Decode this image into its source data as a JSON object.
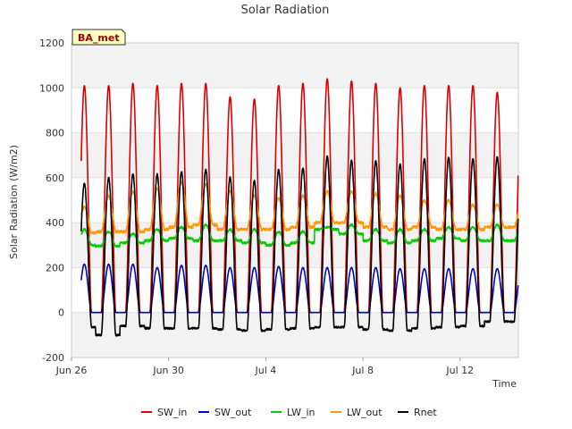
{
  "chart_data": {
    "type": "line",
    "title": "Solar Radiation",
    "xlabel": "Time",
    "ylabel": "Solar Radiation (W/m2)",
    "badge": "BA_met",
    "ylim": [
      -200,
      1200
    ],
    "xlim": [
      0,
      18.4
    ],
    "start_date": "2024-06-26",
    "y_ticks": [
      -200,
      0,
      200,
      400,
      600,
      800,
      1000,
      1200
    ],
    "x_ticks": [
      {
        "day": 0,
        "label": "Jun 26"
      },
      {
        "day": 4,
        "label": "Jun 30"
      },
      {
        "day": 8,
        "label": "Jul 4"
      },
      {
        "day": 12,
        "label": "Jul 8"
      },
      {
        "day": 16,
        "label": "Jul 12"
      }
    ],
    "grid": true,
    "legend_position": "bottom",
    "days": [
      "Jun 26",
      "Jun 27",
      "Jun 28",
      "Jun 29",
      "Jun 30",
      "Jul 1",
      "Jul 2",
      "Jul 3",
      "Jul 4",
      "Jul 5",
      "Jul 6",
      "Jul 7",
      "Jul 8",
      "Jul 9",
      "Jul 10",
      "Jul 11",
      "Jul 12",
      "Jul 13"
    ],
    "series": [
      {
        "name": "SW_in",
        "color": "#dd0000",
        "daily_peak": [
          1010,
          1010,
          1020,
          1010,
          1020,
          1020,
          960,
          950,
          1010,
          1020,
          1040,
          1030,
          1020,
          1000,
          1010,
          1010,
          1010,
          980
        ],
        "night": [
          0,
          0,
          0,
          0,
          0,
          0,
          0,
          0,
          0,
          0,
          0,
          0,
          0,
          0,
          0,
          0,
          0,
          0
        ]
      },
      {
        "name": "SW_out",
        "color": "#0000cc",
        "daily_peak": [
          215,
          215,
          215,
          200,
          210,
          210,
          200,
          200,
          205,
          200,
          200,
          200,
          200,
          195,
          195,
          195,
          195,
          195
        ],
        "night": [
          0,
          0,
          0,
          0,
          0,
          0,
          0,
          0,
          0,
          0,
          0,
          0,
          0,
          0,
          0,
          0,
          0,
          0
        ]
      },
      {
        "name": "LW_in",
        "color": "#00cc00",
        "daily_peak": [
          370,
          360,
          350,
          370,
          380,
          390,
          370,
          370,
          360,
          360,
          380,
          390,
          370,
          370,
          370,
          380,
          380,
          390
        ],
        "night": [
          300,
          295,
          310,
          320,
          330,
          320,
          320,
          310,
          300,
          310,
          370,
          350,
          320,
          310,
          320,
          330,
          320,
          320
        ]
      },
      {
        "name": "LW_out",
        "color": "#ff9900",
        "daily_peak": [
          470,
          520,
          540,
          550,
          580,
          570,
          540,
          520,
          510,
          520,
          540,
          540,
          530,
          520,
          500,
          500,
          480,
          480
        ],
        "night": [
          355,
          360,
          360,
          370,
          380,
          390,
          370,
          370,
          370,
          380,
          400,
          400,
          380,
          370,
          380,
          370,
          370,
          380
        ]
      },
      {
        "name": "Rnet",
        "color": "#000000",
        "daily_peak": [
          575,
          600,
          615,
          615,
          625,
          635,
          600,
          585,
          635,
          645,
          695,
          675,
          675,
          660,
          685,
          690,
          685,
          690
        ],
        "night": [
          -65,
          -100,
          -60,
          -70,
          -70,
          -70,
          -75,
          -80,
          -75,
          -70,
          -65,
          -65,
          -75,
          -80,
          -70,
          -65,
          -60,
          -40
        ]
      }
    ]
  }
}
